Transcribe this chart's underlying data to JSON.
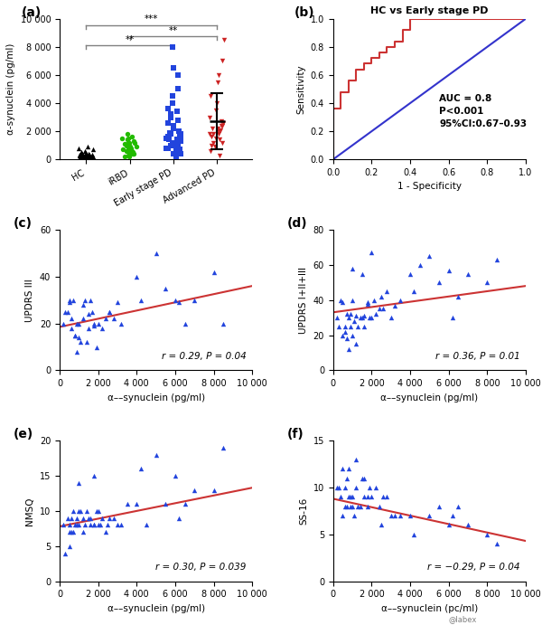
{
  "panel_a": {
    "ylabel": "α-synuclein (pg/ml)",
    "categories": [
      "HC",
      "iRBD",
      "Early stage PD",
      "Advanced PD"
    ],
    "colors": [
      "black",
      "#22bb00",
      "#2244dd",
      "#cc2222"
    ],
    "markers": [
      "^",
      "o",
      "s",
      "v"
    ],
    "hc_data": [
      50,
      80,
      120,
      150,
      200,
      250,
      300,
      350,
      400,
      450,
      100,
      150,
      200,
      250,
      300,
      350,
      500,
      600,
      700,
      800,
      900,
      50,
      100,
      150,
      200,
      250,
      300,
      350,
      400,
      50
    ],
    "irbd_data": [
      200,
      400,
      600,
      800,
      1000,
      1200,
      400,
      600,
      800,
      1000,
      1200,
      1400,
      1600,
      1800,
      200,
      500,
      700,
      900,
      1100,
      1300,
      1500,
      300,
      600,
      900,
      1200,
      1500,
      700,
      400,
      800
    ],
    "early_pd_data": [
      200,
      400,
      600,
      800,
      1000,
      1200,
      1400,
      1600,
      1800,
      2000,
      400,
      600,
      800,
      1000,
      1200,
      1400,
      2200,
      2600,
      1800,
      3000,
      3200,
      3600,
      4000,
      4500,
      5000,
      6000,
      6500,
      8000,
      500,
      700,
      900,
      1100,
      1300,
      1500,
      1700,
      1900,
      2400,
      2800,
      3400,
      1600
    ],
    "advanced_pd_data": [
      300,
      600,
      900,
      1200,
      1500,
      1800,
      2100,
      2400,
      2700,
      3000,
      3500,
      4000,
      4500,
      5500,
      6000,
      7000,
      8500,
      1000,
      1200,
      1400,
      1600,
      1800,
      2000,
      2200,
      2400,
      2600,
      1800,
      2200
    ],
    "ylim": [
      0,
      10000
    ],
    "yticks": [
      0,
      2000,
      4000,
      6000,
      8000,
      10000
    ],
    "yticklabels": [
      "0",
      "2 000",
      "4 000",
      "6 000",
      "8 000",
      "10 000"
    ],
    "bracket_color": "gray"
  },
  "panel_b": {
    "title": "HC vs Early stage PD",
    "xlabel": "1 - Specificity",
    "ylabel": "Sensitivity",
    "auc_text": "AUC = 0.8\nP<0.001\n95%CI:0.67–0.93",
    "roc_fpr": [
      0.0,
      0.0,
      0.0,
      0.04,
      0.04,
      0.08,
      0.08,
      0.12,
      0.12,
      0.16,
      0.16,
      0.2,
      0.2,
      0.24,
      0.24,
      0.28,
      0.28,
      0.32,
      0.32,
      0.36,
      0.36,
      0.4,
      0.4,
      0.44,
      0.44,
      0.48,
      0.48,
      1.0
    ],
    "roc_tpr": [
      0.0,
      0.16,
      0.36,
      0.36,
      0.48,
      0.48,
      0.56,
      0.56,
      0.64,
      0.64,
      0.68,
      0.68,
      0.72,
      0.72,
      0.76,
      0.76,
      0.8,
      0.8,
      0.84,
      0.84,
      0.92,
      0.92,
      1.0,
      1.0,
      1.0,
      1.0,
      1.0,
      1.0
    ],
    "roc_color": "#cc3333",
    "diag_color": "#3333cc"
  },
  "panel_c": {
    "label": "(c)",
    "xlabel": "α––synuclein (pg/ml)",
    "ylabel": "UPDRS III",
    "corr_text": "r = 0.29, P = 0.04",
    "slope": 0.00175,
    "intercept": 18.5,
    "xlim": [
      0,
      10000
    ],
    "ylim": [
      0,
      60
    ],
    "yticks": [
      0,
      20,
      40,
      60
    ],
    "xticks": [
      0,
      2000,
      4000,
      6000,
      8000,
      10000
    ],
    "xticklabels": [
      "0",
      "2 000",
      "4 000",
      "6 000",
      "8 000",
      "10 000"
    ],
    "x_data": [
      200,
      400,
      500,
      600,
      700,
      800,
      900,
      1000,
      1100,
      1200,
      1300,
      1400,
      1500,
      1600,
      1700,
      1800,
      1900,
      300,
      600,
      500,
      800,
      900,
      1000,
      1200,
      1500,
      2000,
      2200,
      2400,
      2600,
      2800,
      3200,
      4000,
      4200,
      5000,
      5500,
      6000,
      6200,
      6500,
      7000,
      8000,
      8500,
      1800,
      2600,
      3000
    ],
    "y_data": [
      20,
      25,
      29,
      18,
      30,
      15,
      20,
      20,
      12,
      22,
      30,
      12,
      18,
      30,
      25,
      20,
      10,
      25,
      22,
      30,
      15,
      8,
      14,
      28,
      24,
      20,
      18,
      22,
      25,
      22,
      20,
      40,
      30,
      50,
      35,
      30,
      29,
      20,
      30,
      42,
      20,
      19,
      25,
      29
    ],
    "line_color": "#cc3333",
    "point_color": "#2244dd"
  },
  "panel_d": {
    "label": "(d)",
    "xlabel": "α––synuclein (pg/ml)",
    "ylabel": "UPDRS I+II+III",
    "corr_text": "r = 0.36, P = 0.01",
    "slope": 0.0015,
    "intercept": 33.0,
    "xlim": [
      0,
      10000
    ],
    "ylim": [
      0,
      80
    ],
    "yticks": [
      0,
      20,
      40,
      60,
      80
    ],
    "xticks": [
      0,
      2000,
      4000,
      6000,
      8000,
      10000
    ],
    "xticklabels": [
      "0",
      "2 000",
      "4 000",
      "6 000",
      "8 000",
      "10 000"
    ],
    "x_data": [
      200,
      400,
      500,
      600,
      700,
      800,
      900,
      1000,
      1200,
      1400,
      1600,
      1800,
      500,
      700,
      900,
      1100,
      1300,
      1500,
      2000,
      2200,
      2400,
      2800,
      3200,
      4000,
      4200,
      5000,
      5500,
      6000,
      6200,
      6500,
      7000,
      8000,
      8500,
      1800,
      2600,
      3000,
      2500,
      3500,
      1600,
      1000,
      600,
      300,
      1900,
      2100,
      4500,
      1000,
      1500,
      2000,
      800,
      1200
    ],
    "y_data": [
      30,
      40,
      39,
      25,
      32,
      30,
      32,
      40,
      31,
      30,
      25,
      39,
      20,
      18,
      25,
      28,
      25,
      30,
      30,
      32,
      35,
      45,
      37,
      55,
      45,
      65,
      50,
      57,
      30,
      42,
      55,
      50,
      63,
      38,
      35,
      30,
      42,
      40,
      31,
      20,
      22,
      25,
      30,
      40,
      60,
      58,
      55,
      67,
      12,
      15
    ],
    "line_color": "#cc3333",
    "point_color": "#2244dd"
  },
  "panel_e": {
    "label": "(e)",
    "xlabel": "α––synuclein (pg/ml)",
    "ylabel": "NMSQ",
    "corr_text": "r = 0.30, P = 0.039",
    "slope": 0.00055,
    "intercept": 7.8,
    "xlim": [
      0,
      10000
    ],
    "ylim": [
      0,
      20
    ],
    "yticks": [
      0,
      5,
      10,
      15,
      20
    ],
    "xticks": [
      0,
      2000,
      4000,
      6000,
      8000,
      10000
    ],
    "xticklabels": [
      "0",
      "2 000",
      "4 000",
      "6 000",
      "8 000",
      "10 000"
    ],
    "x_data": [
      200,
      400,
      500,
      600,
      700,
      800,
      900,
      1000,
      1200,
      1400,
      1600,
      1800,
      500,
      700,
      900,
      1100,
      1300,
      1500,
      2000,
      2200,
      2400,
      2800,
      3200,
      4000,
      4200,
      5000,
      5500,
      6000,
      6200,
      6500,
      7000,
      8000,
      8500,
      1800,
      2600,
      3000,
      2500,
      3500,
      1600,
      1000,
      600,
      300,
      1900,
      2100,
      4500,
      1000,
      1800,
      500,
      1200,
      2000
    ],
    "y_data": [
      8,
      9,
      8,
      7,
      10,
      8,
      9,
      8,
      9,
      10,
      8,
      8,
      7,
      7,
      8,
      10,
      8,
      9,
      8,
      9,
      7,
      9,
      8,
      11,
      16,
      18,
      11,
      15,
      9,
      11,
      13,
      13,
      19,
      8,
      9,
      8,
      8,
      11,
      9,
      10,
      9,
      4,
      10,
      8,
      8,
      14,
      15,
      5,
      7,
      10
    ],
    "line_color": "#cc3333",
    "point_color": "#2244dd"
  },
  "panel_f": {
    "label": "(f)",
    "xlabel": "α––synuclein (pc/ml)",
    "ylabel": "SS-16",
    "corr_text": "r = −0.29, P = 0.04",
    "slope": -0.00045,
    "intercept": 8.8,
    "xlim": [
      0,
      10000
    ],
    "ylim": [
      0,
      15
    ],
    "yticks": [
      0,
      5,
      10,
      15
    ],
    "xticks": [
      0,
      2000,
      4000,
      6000,
      8000,
      10000
    ],
    "xticklabels": [
      "0",
      "2 000",
      "4 000",
      "6 000",
      "8 000",
      "10 000"
    ],
    "x_data": [
      200,
      400,
      500,
      600,
      700,
      800,
      900,
      1000,
      1200,
      1400,
      1600,
      1800,
      500,
      700,
      900,
      1100,
      1300,
      1500,
      2000,
      2200,
      2400,
      2800,
      3200,
      4000,
      4200,
      5000,
      5500,
      6000,
      6200,
      6500,
      7000,
      8000,
      8500,
      1800,
      2600,
      3000,
      2500,
      3500,
      1600,
      1000,
      600,
      300,
      1900,
      800,
      1200
    ],
    "y_data": [
      10,
      9,
      12,
      10,
      11,
      9,
      8,
      9,
      10,
      8,
      11,
      9,
      7,
      8,
      9,
      7,
      8,
      11,
      9,
      10,
      8,
      9,
      7,
      7,
      5,
      7,
      8,
      6,
      7,
      8,
      6,
      5,
      4,
      8,
      9,
      7,
      6,
      7,
      9,
      8,
      8,
      10,
      10,
      12,
      13
    ],
    "line_color": "#cc3333",
    "point_color": "#2244dd"
  },
  "watermark": "@labex"
}
